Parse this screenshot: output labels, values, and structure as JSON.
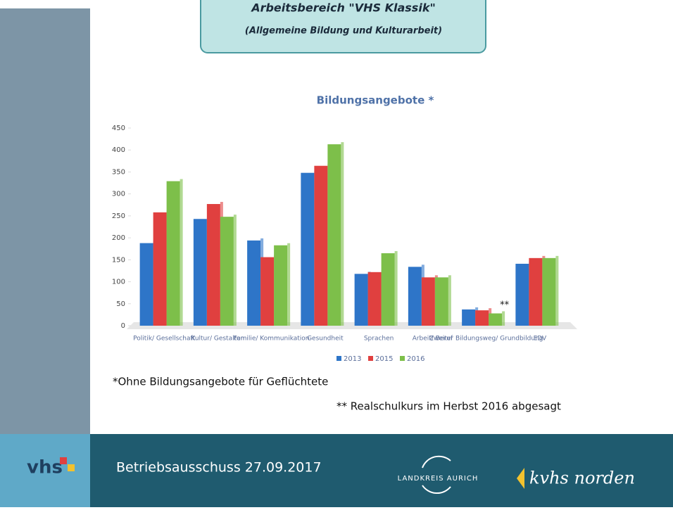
{
  "slide": {
    "header_title": "Arbeitsbereich \"VHS Klassik\"",
    "header_subtitle": "(Allgemeine Bildung und Kulturarbeit)",
    "note1": "*Ohne Bildungsangebote für Geflüchtete",
    "note2": "** Realschulkurs im Herbst 2016 abgesagt",
    "footer_logo": "vhs",
    "footer_text": "Betriebsausschuss 27.09.2017",
    "footer_org1": "LANDKREIS AURICH",
    "footer_org2": "kvhs norden"
  },
  "chart_data": {
    "type": "bar",
    "title": "Bildungsangebote *",
    "categories": [
      "Politik/ Gesellschaft",
      "Kultur/ Gestalten",
      "Familie/ Kommunikation",
      "Gesundheit",
      "Sprachen",
      "Arbeit/ Beruf",
      "Zweiter Bildungsweg/ Grundbildung",
      "EDV"
    ],
    "series": [
      {
        "name": "2013",
        "color": "#2e75c8",
        "values": [
          188,
          243,
          194,
          348,
          118,
          134,
          37,
          141
        ]
      },
      {
        "name": "2015",
        "color": "#e0403f",
        "values": [
          258,
          277,
          156,
          364,
          122,
          110,
          35,
          154
        ]
      },
      {
        "name": "2016",
        "color": "#7dbf4a",
        "values": [
          329,
          248,
          183,
          413,
          165,
          110,
          28,
          154
        ]
      }
    ],
    "annotation": "**",
    "ylim": [
      0,
      450
    ],
    "yticks": [
      0,
      50,
      100,
      150,
      200,
      250,
      300,
      350,
      400,
      450
    ],
    "legend": "bottom"
  }
}
